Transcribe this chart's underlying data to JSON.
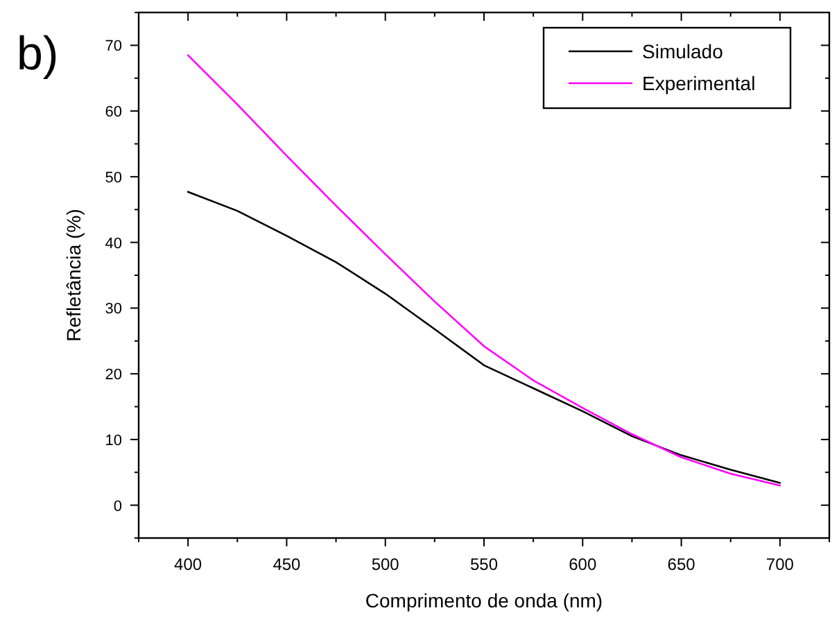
{
  "chart_data": {
    "type": "line",
    "xlabel": "Comprimento de onda (nm)",
    "ylabel": "Refletância (%)",
    "annotations": [
      "b)"
    ],
    "x": [
      400,
      425,
      450,
      475,
      500,
      525,
      550,
      575,
      600,
      625,
      650,
      675,
      700
    ],
    "series": [
      {
        "name": "Simulado",
        "color": "#000000",
        "values": [
          47.7,
          44.8,
          41,
          37,
          32.2,
          26.8,
          21.3,
          17.8,
          14.3,
          10.5,
          7.6,
          5.4,
          3.4
        ]
      },
      {
        "name": "Experimental",
        "color": "#ff00ff",
        "values": [
          68.5,
          61,
          53.2,
          45.6,
          38.2,
          31,
          24.2,
          19,
          14.8,
          10.8,
          7.3,
          4.8,
          3.0
        ]
      }
    ],
    "xlim": [
      375,
      725
    ],
    "ylim": [
      -5,
      75
    ],
    "xticks": [
      {
        "value": 375,
        "label": null
      },
      400,
      {
        "value": 425,
        "label": null
      },
      450,
      {
        "value": 475,
        "label": null
      },
      500,
      {
        "value": 525,
        "label": null
      },
      550,
      {
        "value": 575,
        "label": null
      },
      600,
      {
        "value": 625,
        "label": null
      },
      650,
      {
        "value": 675,
        "label": null
      },
      700,
      {
        "value": 725,
        "label": null
      }
    ],
    "yticks": [
      {
        "value": -5,
        "label": null
      },
      0,
      {
        "value": 5,
        "label": null
      },
      10,
      {
        "value": 15,
        "label": null
      },
      20,
      {
        "value": 25,
        "label": null
      },
      30,
      {
        "value": 35,
        "label": null
      },
      40,
      {
        "value": 45,
        "label": null
      },
      50,
      {
        "value": 55,
        "label": null
      },
      60,
      {
        "value": 65,
        "label": null
      },
      70,
      {
        "value": 75,
        "label": null
      }
    ],
    "legend": "top right",
    "grid": false,
    "line_style": "solid",
    "marker": "none"
  }
}
